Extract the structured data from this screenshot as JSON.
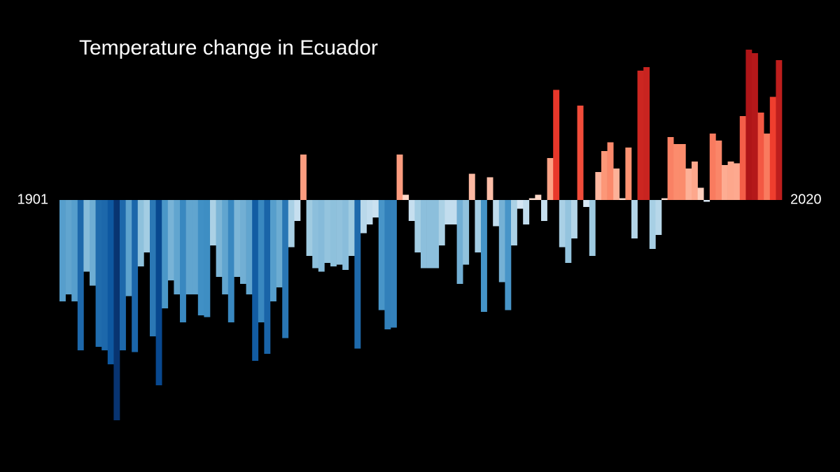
{
  "chart_data": {
    "type": "bar",
    "title": "Temperature change in Ecuador",
    "categories": [
      "1901",
      null,
      null,
      null,
      null,
      null,
      null,
      null,
      null,
      null,
      null,
      null,
      null,
      null,
      null,
      null,
      null,
      null,
      null,
      null,
      null,
      null,
      null,
      null,
      null,
      null,
      null,
      null,
      null,
      null,
      null,
      null,
      null,
      null,
      null,
      null,
      null,
      null,
      null,
      null,
      null,
      null,
      null,
      null,
      null,
      null,
      null,
      null,
      null,
      null,
      null,
      null,
      null,
      null,
      null,
      null,
      null,
      null,
      null,
      null,
      null,
      null,
      null,
      null,
      null,
      null,
      null,
      null,
      null,
      null,
      null,
      null,
      null,
      null,
      null,
      null,
      null,
      null,
      null,
      null,
      null,
      null,
      null,
      null,
      null,
      null,
      null,
      null,
      null,
      null,
      null,
      null,
      null,
      null,
      null,
      null,
      null,
      null,
      null,
      null,
      null,
      null,
      null,
      null,
      null,
      null,
      null,
      null,
      null,
      null,
      null,
      null,
      null,
      null,
      null,
      null,
      null,
      null,
      null,
      "2020"
    ],
    "values": [
      -0.58,
      -0.54,
      -0.58,
      -0.86,
      -0.41,
      -0.49,
      -0.84,
      -0.86,
      -0.94,
      -1.26,
      -0.86,
      -0.55,
      -0.87,
      -0.38,
      -0.3,
      -0.78,
      -1.06,
      -0.62,
      -0.46,
      -0.54,
      -0.7,
      -0.54,
      -0.54,
      -0.66,
      -0.67,
      -0.26,
      -0.44,
      -0.54,
      -0.7,
      -0.44,
      -0.48,
      -0.54,
      -0.92,
      -0.7,
      -0.88,
      -0.58,
      -0.5,
      -0.79,
      -0.27,
      -0.12,
      0.26,
      -0.32,
      -0.39,
      -0.41,
      -0.36,
      -0.38,
      -0.37,
      -0.4,
      -0.32,
      -0.85,
      -0.19,
      -0.14,
      -0.1,
      -0.63,
      -0.74,
      -0.73,
      0.26,
      0.03,
      -0.12,
      -0.3,
      -0.39,
      -0.39,
      -0.39,
      -0.26,
      -0.14,
      -0.14,
      -0.48,
      -0.37,
      0.15,
      -0.3,
      -0.64,
      0.13,
      -0.15,
      -0.47,
      -0.63,
      -0.26,
      -0.05,
      -0.14,
      0.01,
      0.03,
      -0.12,
      0.24,
      0.63,
      -0.27,
      -0.36,
      -0.22,
      0.54,
      -0.04,
      -0.32,
      0.16,
      0.28,
      0.33,
      0.18,
      0.01,
      0.3,
      -0.22,
      0.74,
      0.76,
      -0.28,
      -0.2,
      0.01,
      0.36,
      0.32,
      0.32,
      0.18,
      0.22,
      0.07,
      -0.01,
      0.38,
      0.34,
      0.2,
      0.22,
      0.21,
      0.48,
      0.86,
      0.84,
      0.5,
      0.38,
      0.59,
      0.8
    ],
    "ylim": [
      -1.3,
      0.9
    ],
    "colormap": {
      "negative": [
        "#deebf7",
        "#9ecae1",
        "#4292c6",
        "#08519c",
        "#08306b"
      ],
      "positive": [
        "#fee0d2",
        "#fc9272",
        "#ef3b2c",
        "#a50f15"
      ]
    }
  }
}
